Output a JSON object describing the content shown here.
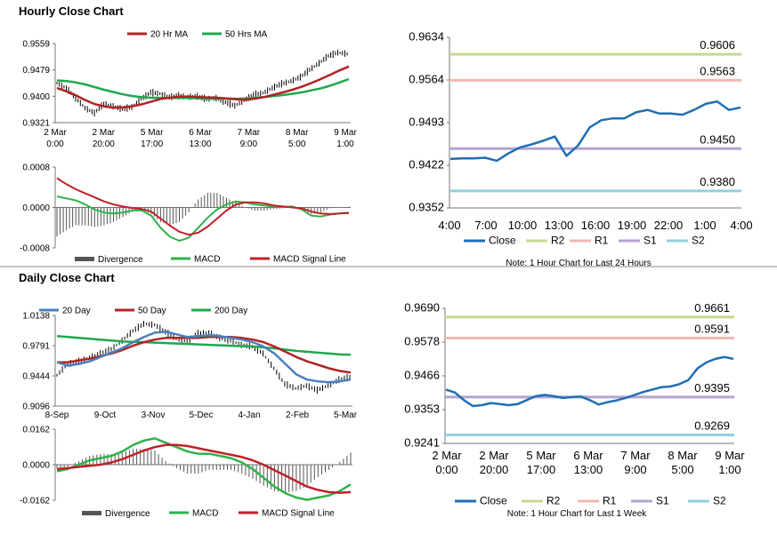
{
  "sections": {
    "hourly_title": "Hourly Close Chart",
    "daily_title": "Daily Close Chart"
  },
  "colors": {
    "ma_short": "#b22222",
    "ma_long": "#1fa84f",
    "close": "#1f6eb5",
    "r2": "#c5d98f",
    "r1": "#f2b8b3",
    "s1": "#b3a3cf",
    "s2": "#92cfdf",
    "divergence": "#555555",
    "day20": "#4a7fbf",
    "macd_green": "#2db34a",
    "signal_red": "#c0202a"
  },
  "chart_data": [
    {
      "id": "hourly_price",
      "type": "line",
      "legend": [
        "20 Hr MA",
        "50 Hrs MA"
      ],
      "y_ticks": [
        "0.9559",
        "0.9479",
        "0.9400",
        "0.9321"
      ],
      "ylim": [
        0.9321,
        0.9559
      ],
      "x_ticks": [
        [
          "2 Mar",
          "0:00"
        ],
        [
          "2 Mar",
          "20:00"
        ],
        [
          "5 Mar",
          "17:00"
        ],
        [
          "6 Mar",
          "13:00"
        ],
        [
          "7 Mar",
          "9:00"
        ],
        [
          "8 Mar",
          "5:00"
        ],
        [
          "9 Mar",
          "1:00"
        ]
      ],
      "series": [
        {
          "name": "Close",
          "values": [
            0.944,
            0.9425,
            0.9395,
            0.9365,
            0.935,
            0.9378,
            0.937,
            0.9362,
            0.9368,
            0.9392,
            0.9412,
            0.9408,
            0.9398,
            0.9402,
            0.9398,
            0.94,
            0.9392,
            0.9395,
            0.9382,
            0.9372,
            0.9388,
            0.9405,
            0.941,
            0.9425,
            0.9438,
            0.9446,
            0.9458,
            0.948,
            0.95,
            0.9522,
            0.9532,
            0.9528
          ]
        },
        {
          "name": "20 Hr MA",
          "values": [
            0.9425,
            0.9415,
            0.9403,
            0.9389,
            0.9377,
            0.937,
            0.9366,
            0.9367,
            0.937,
            0.9376,
            0.9384,
            0.9392,
            0.9396,
            0.9399,
            0.9399,
            0.9398,
            0.9397,
            0.9396,
            0.9394,
            0.9391,
            0.939,
            0.9393,
            0.9398,
            0.9405,
            0.9412,
            0.942,
            0.9429,
            0.944,
            0.9452,
            0.9465,
            0.9478,
            0.949
          ]
        },
        {
          "name": "50 Hrs MA",
          "values": [
            0.9448,
            0.9446,
            0.9442,
            0.9436,
            0.9428,
            0.942,
            0.9413,
            0.9406,
            0.9401,
            0.9398,
            0.9396,
            0.9395,
            0.9395,
            0.9395,
            0.9395,
            0.9394,
            0.9393,
            0.9393,
            0.9393,
            0.9393,
            0.9394,
            0.9396,
            0.9398,
            0.9401,
            0.9404,
            0.9408,
            0.9412,
            0.9418,
            0.9424,
            0.9432,
            0.9442,
            0.9452
          ]
        }
      ]
    },
    {
      "id": "hourly_macd",
      "type": "line",
      "legend": [
        "Divergence",
        "MACD",
        "MACD Signal Line"
      ],
      "y_ticks": [
        "0.0008",
        "0.0000",
        "-0.0008"
      ],
      "ylim": [
        -0.0008,
        0.0008
      ],
      "series": [
        {
          "name": "MACD",
          "values": [
            0.00022,
            0.00018,
            0.00014,
            6e-05,
            -4e-05,
            -0.0001,
            -0.00012,
            -0.0001,
            -6e-05,
            -6e-05,
            -0.00016,
            -0.0004,
            -0.00058,
            -0.00066,
            -0.0006,
            -0.0004,
            -0.0002,
            -4e-05,
            6e-05,
            0.00012,
            0.0001,
            6e-05,
            4e-05,
            2e-05,
            1e-05,
            2e-05,
            -4e-05,
            -0.00016,
            -0.00018,
            -0.00014,
            -0.00012,
            -0.0001
          ]
        },
        {
          "name": "MACD Signal Line",
          "values": [
            0.00058,
            0.00046,
            0.00036,
            0.00028,
            0.0002,
            0.00012,
            6e-05,
            2e-05,
            -1e-05,
            -3e-05,
            -8e-05,
            -0.00022,
            -0.00036,
            -0.00048,
            -0.00054,
            -0.0005,
            -0.00038,
            -0.00022,
            -6e-05,
            6e-05,
            0.0001,
            0.0001,
            8e-05,
            4e-05,
            2e-05,
            0.0,
            -2e-05,
            -8e-05,
            -0.00012,
            -0.00013,
            -0.00012,
            -0.00011
          ]
        }
      ]
    },
    {
      "id": "hourly_levels",
      "type": "line",
      "title_note": "Note: 1 Hour Chart for Last 24 Hours",
      "legend": [
        "Close",
        "R2",
        "R1",
        "S1",
        "S2"
      ],
      "y_ticks": [
        "0.9634",
        "0.9564",
        "0.9493",
        "0.9422",
        "0.9352"
      ],
      "ylim": [
        0.9352,
        0.9634
      ],
      "x_ticks": [
        "4:00",
        "7:00",
        "10:00",
        "13:00",
        "16:00",
        "19:00",
        "22:00",
        "1:00",
        "4:00"
      ],
      "levels": [
        {
          "name": "R2",
          "value": 0.9606,
          "label": "0.9606"
        },
        {
          "name": "R1",
          "value": 0.9563,
          "label": "0.9563"
        },
        {
          "name": "S1",
          "value": 0.945,
          "label": "0.9450"
        },
        {
          "name": "S2",
          "value": 0.938,
          "label": "0.9380"
        }
      ],
      "series": [
        {
          "name": "Close",
          "values": [
            0.9433,
            0.9434,
            0.9434,
            0.9435,
            0.943,
            0.9442,
            0.9452,
            0.9457,
            0.9463,
            0.947,
            0.9438,
            0.9455,
            0.9485,
            0.9497,
            0.95,
            0.95,
            0.951,
            0.9514,
            0.9508,
            0.9508,
            0.9506,
            0.9514,
            0.9524,
            0.9528,
            0.9514,
            0.9518
          ]
        }
      ]
    },
    {
      "id": "daily_price",
      "type": "line",
      "legend": [
        "20 Day",
        "50 Day",
        "200 Day"
      ],
      "y_ticks": [
        "1.0138",
        "0.9791",
        "0.9444",
        "0.9096"
      ],
      "ylim": [
        0.9096,
        1.0138
      ],
      "x_ticks": [
        "8-Sep",
        "9-Oct",
        "3-Nov",
        "5-Dec",
        "4-Jan",
        "2-Feb",
        "5-Mar"
      ],
      "series": [
        {
          "name": "Close",
          "values": [
            0.945,
            0.958,
            0.961,
            0.965,
            0.97,
            0.975,
            0.985,
            0.996,
            1.004,
            1.003,
            0.995,
            0.987,
            0.984,
            0.993,
            0.994,
            0.988,
            0.985,
            0.98,
            0.978,
            0.97,
            0.953,
            0.935,
            0.93,
            0.933,
            0.928,
            0.933,
            0.94,
            0.943
          ]
        },
        {
          "name": "20 Day",
          "values": [
            0.96,
            0.956,
            0.958,
            0.961,
            0.966,
            0.971,
            0.976,
            0.983,
            0.989,
            0.994,
            0.995,
            0.992,
            0.989,
            0.99,
            0.991,
            0.99,
            0.988,
            0.986,
            0.983,
            0.978,
            0.97,
            0.958,
            0.946,
            0.94,
            0.938,
            0.937,
            0.938,
            0.94
          ]
        },
        {
          "name": "50 Day",
          "values": [
            0.96,
            0.96,
            0.962,
            0.964,
            0.967,
            0.97,
            0.974,
            0.979,
            0.983,
            0.986,
            0.988,
            0.988,
            0.988,
            0.988,
            0.989,
            0.989,
            0.989,
            0.988,
            0.986,
            0.983,
            0.978,
            0.972,
            0.966,
            0.961,
            0.957,
            0.953,
            0.95,
            0.948
          ]
        },
        {
          "name": "200 Day",
          "values": [
            0.99,
            0.989,
            0.988,
            0.987,
            0.986,
            0.985,
            0.984,
            0.9835,
            0.983,
            0.9825,
            0.982,
            0.9815,
            0.981,
            0.9805,
            0.98,
            0.9795,
            0.979,
            0.9785,
            0.978,
            0.977,
            0.976,
            0.9745,
            0.973,
            0.972,
            0.971,
            0.97,
            0.969,
            0.9685
          ]
        }
      ]
    },
    {
      "id": "daily_macd",
      "type": "line",
      "legend": [
        "Divergence",
        "MACD",
        "MACD Signal Line"
      ],
      "y_ticks": [
        "0.0162",
        "0.0000",
        "-0.0162"
      ],
      "ylim": [
        -0.0162,
        0.0162
      ],
      "series": [
        {
          "name": "MACD",
          "values": [
            -0.003,
            -0.002,
            0.0,
            0.002,
            0.003,
            0.004,
            0.006,
            0.009,
            0.011,
            0.012,
            0.01,
            0.008,
            0.006,
            0.005,
            0.005,
            0.004,
            0.003,
            0.001,
            -0.002,
            -0.006,
            -0.01,
            -0.013,
            -0.015,
            -0.016,
            -0.015,
            -0.014,
            -0.012,
            -0.009
          ]
        },
        {
          "name": "MACD Signal Line",
          "values": [
            -0.002,
            -0.0015,
            -0.001,
            -0.0005,
            0.0,
            0.001,
            0.0025,
            0.0045,
            0.0065,
            0.008,
            0.009,
            0.009,
            0.0085,
            0.0075,
            0.0065,
            0.0055,
            0.0045,
            0.0035,
            0.002,
            0.0,
            -0.0025,
            -0.005,
            -0.0075,
            -0.01,
            -0.0115,
            -0.0125,
            -0.0128,
            -0.0125
          ]
        }
      ]
    },
    {
      "id": "daily_levels",
      "type": "line",
      "title_note": "Note: 1 Hour Chart for Last 1 Week",
      "legend": [
        "Close",
        "R2",
        "R1",
        "S1",
        "S2"
      ],
      "y_ticks": [
        "0.9690",
        "0.9578",
        "0.9466",
        "0.9353",
        "0.9241"
      ],
      "ylim": [
        0.9241,
        0.969
      ],
      "x_ticks": [
        [
          "2 Mar",
          "0:00"
        ],
        [
          "2 Mar",
          "20:00"
        ],
        [
          "5 Mar",
          "17:00"
        ],
        [
          "6 Mar",
          "13:00"
        ],
        [
          "7 Mar",
          "9:00"
        ],
        [
          "8 Mar",
          "5:00"
        ],
        [
          "9 Mar",
          "1:00"
        ]
      ],
      "levels": [
        {
          "name": "R2",
          "value": 0.9661,
          "label": "0.9661"
        },
        {
          "name": "R1",
          "value": 0.9591,
          "label": "0.9591"
        },
        {
          "name": "S1",
          "value": 0.9395,
          "label": "0.9395"
        },
        {
          "name": "S2",
          "value": 0.9269,
          "label": "0.9269"
        }
      ],
      "series": [
        {
          "name": "Close",
          "values": [
            0.942,
            0.941,
            0.9385,
            0.9365,
            0.9368,
            0.9375,
            0.9372,
            0.9368,
            0.9372,
            0.9385,
            0.9398,
            0.9402,
            0.9398,
            0.9392,
            0.9395,
            0.9397,
            0.9385,
            0.937,
            0.9378,
            0.9384,
            0.9392,
            0.9402,
            0.9412,
            0.942,
            0.9428,
            0.943,
            0.9438,
            0.9452,
            0.949,
            0.951,
            0.9522,
            0.9528,
            0.9522
          ]
        }
      ]
    }
  ]
}
